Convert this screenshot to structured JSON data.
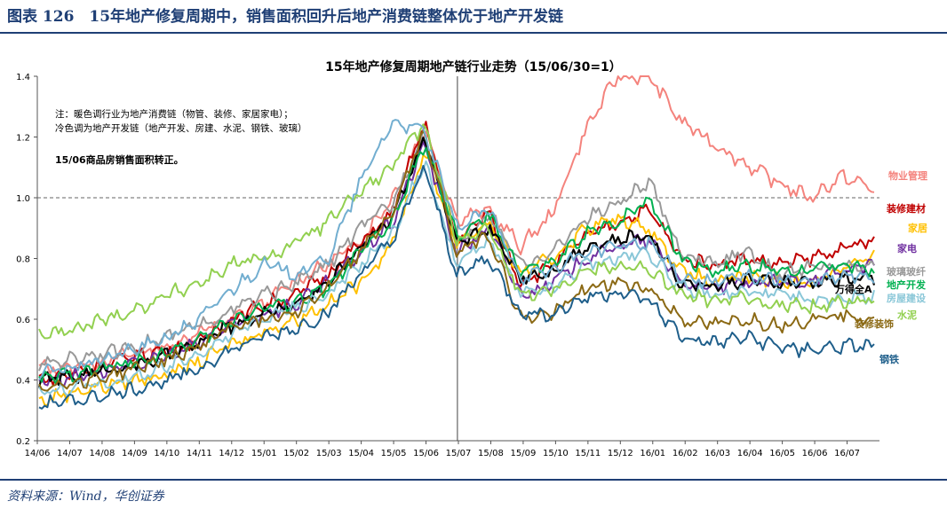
{
  "figure": {
    "title": "图表 126　15年地产修复周期中，销售面积回升后地产消费链整体优于地产开发链",
    "source": "资料来源：Wind，华创证券"
  },
  "chart_data": {
    "type": "line",
    "title": "15年地产修复周期地产链行业走势（15/06/30=1）",
    "note_lines": [
      "注：暖色调行业为地产消费链（物管、装修、家居家电）；",
      "冷色调为地产开发链（地产开发、房建、水泥、钢铁、玻璃）"
    ],
    "note_bold": "15/06商品房销售面积转正。",
    "x_ticks": [
      "14/06",
      "14/07",
      "14/08",
      "14/09",
      "14/10",
      "14/11",
      "14/12",
      "15/01",
      "15/02",
      "15/03",
      "15/04",
      "15/05",
      "15/06",
      "15/07",
      "15/08",
      "15/09",
      "15/10",
      "15/11",
      "15/12",
      "16/01",
      "16/02",
      "16/03",
      "16/04",
      "16/05",
      "16/06",
      "16/07"
    ],
    "y_ticks": [
      "0.2",
      "0.4",
      "0.6",
      "0.8",
      "1.0",
      "1.2",
      "1.4"
    ],
    "ylim": [
      0.2,
      1.4
    ],
    "reference_line": {
      "y": 1.0,
      "style": "dashed"
    },
    "vertical_line": {
      "x": "15/06/30"
    },
    "series": [
      {
        "name": "物业管理",
        "color": "#f4837d",
        "values": [
          0.44,
          0.44,
          0.46,
          0.49,
          0.51,
          0.56,
          0.6,
          0.65,
          0.73,
          0.78,
          0.86,
          1.0,
          1.23,
          0.93,
          0.96,
          0.84,
          0.95,
          1.22,
          1.4,
          1.4,
          1.25,
          1.18,
          1.11,
          1.05,
          1.0,
          1.07,
          1.03
        ]
      },
      {
        "name": "装修建材",
        "color": "#c00000",
        "values": [
          0.4,
          0.42,
          0.45,
          0.48,
          0.5,
          0.53,
          0.6,
          0.65,
          0.68,
          0.75,
          0.85,
          0.95,
          1.25,
          0.86,
          0.95,
          0.72,
          0.78,
          0.87,
          0.92,
          0.96,
          0.8,
          0.78,
          0.8,
          0.78,
          0.8,
          0.83,
          0.86
        ]
      },
      {
        "name": "家居",
        "color": "#ffc000",
        "values": [
          0.33,
          0.36,
          0.38,
          0.4,
          0.42,
          0.46,
          0.52,
          0.56,
          0.6,
          0.65,
          0.72,
          0.85,
          1.15,
          0.85,
          0.92,
          0.75,
          0.8,
          0.9,
          0.93,
          0.9,
          0.76,
          0.72,
          0.74,
          0.73,
          0.72,
          0.77,
          0.8
        ]
      },
      {
        "name": "家电",
        "color": "#7030a0",
        "values": [
          0.4,
          0.41,
          0.43,
          0.45,
          0.48,
          0.52,
          0.58,
          0.62,
          0.65,
          0.72,
          0.82,
          0.92,
          1.18,
          0.82,
          0.9,
          0.68,
          0.72,
          0.8,
          0.84,
          0.86,
          0.72,
          0.7,
          0.72,
          0.72,
          0.73,
          0.76,
          0.78
        ]
      },
      {
        "name": "玻璃玻纤",
        "color": "#999999",
        "values": [
          0.45,
          0.47,
          0.49,
          0.51,
          0.54,
          0.58,
          0.63,
          0.68,
          0.72,
          0.78,
          0.9,
          0.98,
          1.22,
          0.85,
          0.94,
          0.78,
          0.82,
          0.93,
          0.98,
          1.05,
          0.82,
          0.78,
          0.82,
          0.75,
          0.77,
          0.78,
          0.78
        ]
      },
      {
        "name": "万得全A",
        "color": "#000000",
        "values": [
          0.4,
          0.41,
          0.43,
          0.45,
          0.48,
          0.52,
          0.58,
          0.62,
          0.65,
          0.72,
          0.84,
          0.94,
          1.2,
          0.84,
          0.9,
          0.74,
          0.76,
          0.84,
          0.86,
          0.88,
          0.72,
          0.71,
          0.73,
          0.72,
          0.72,
          0.73,
          0.74
        ]
      },
      {
        "name": "地产开发",
        "color": "#00b050",
        "values": [
          0.4,
          0.42,
          0.44,
          0.46,
          0.49,
          0.53,
          0.6,
          0.64,
          0.66,
          0.7,
          0.82,
          0.92,
          1.18,
          0.87,
          0.94,
          0.76,
          0.78,
          0.88,
          0.92,
          1.0,
          0.8,
          0.76,
          0.78,
          0.76,
          0.76,
          0.78,
          0.76
        ]
      },
      {
        "name": "房屋建设",
        "color": "#8ac7d8",
        "values": [
          0.36,
          0.37,
          0.39,
          0.41,
          0.44,
          0.49,
          0.55,
          0.6,
          0.64,
          0.68,
          0.78,
          0.88,
          1.12,
          0.78,
          0.86,
          0.68,
          0.7,
          0.78,
          0.8,
          0.82,
          0.7,
          0.68,
          0.69,
          0.68,
          0.66,
          0.67,
          0.68
        ]
      },
      {
        "name": "水泥",
        "color": "#92d050",
        "values": [
          0.55,
          0.56,
          0.6,
          0.63,
          0.68,
          0.72,
          0.78,
          0.8,
          0.85,
          0.92,
          1.02,
          1.1,
          1.25,
          0.86,
          0.9,
          0.68,
          0.7,
          0.76,
          0.78,
          0.76,
          0.68,
          0.66,
          0.67,
          0.65,
          0.64,
          0.66,
          0.66
        ]
      },
      {
        "name": "装修装饰",
        "color": "#8b6914",
        "values": [
          0.38,
          0.39,
          0.41,
          0.44,
          0.47,
          0.51,
          0.58,
          0.6,
          0.63,
          0.7,
          0.82,
          0.95,
          1.22,
          0.82,
          0.88,
          0.6,
          0.62,
          0.7,
          0.72,
          0.7,
          0.6,
          0.58,
          0.6,
          0.58,
          0.6,
          0.62,
          0.6
        ]
      },
      {
        "name": "钢铁",
        "color": "#1f5f8b",
        "values": [
          0.32,
          0.33,
          0.35,
          0.37,
          0.4,
          0.44,
          0.5,
          0.54,
          0.57,
          0.62,
          0.75,
          0.86,
          1.1,
          0.75,
          0.8,
          0.62,
          0.62,
          0.67,
          0.69,
          0.66,
          0.54,
          0.52,
          0.54,
          0.51,
          0.5,
          0.51,
          0.51
        ]
      },
      {
        "name": "",
        "color": "#72aed0",
        "values": [
          0.42,
          0.44,
          0.47,
          0.5,
          0.54,
          0.6,
          0.7,
          0.78,
          0.75,
          0.8,
          1.05,
          1.25,
          1.22,
          0.9,
          0.96,
          0.74,
          0.76,
          0.82,
          0.84,
          0.85,
          0.74,
          0.72,
          0.74,
          0.73,
          0.72,
          0.74,
          0.74
        ]
      }
    ]
  }
}
